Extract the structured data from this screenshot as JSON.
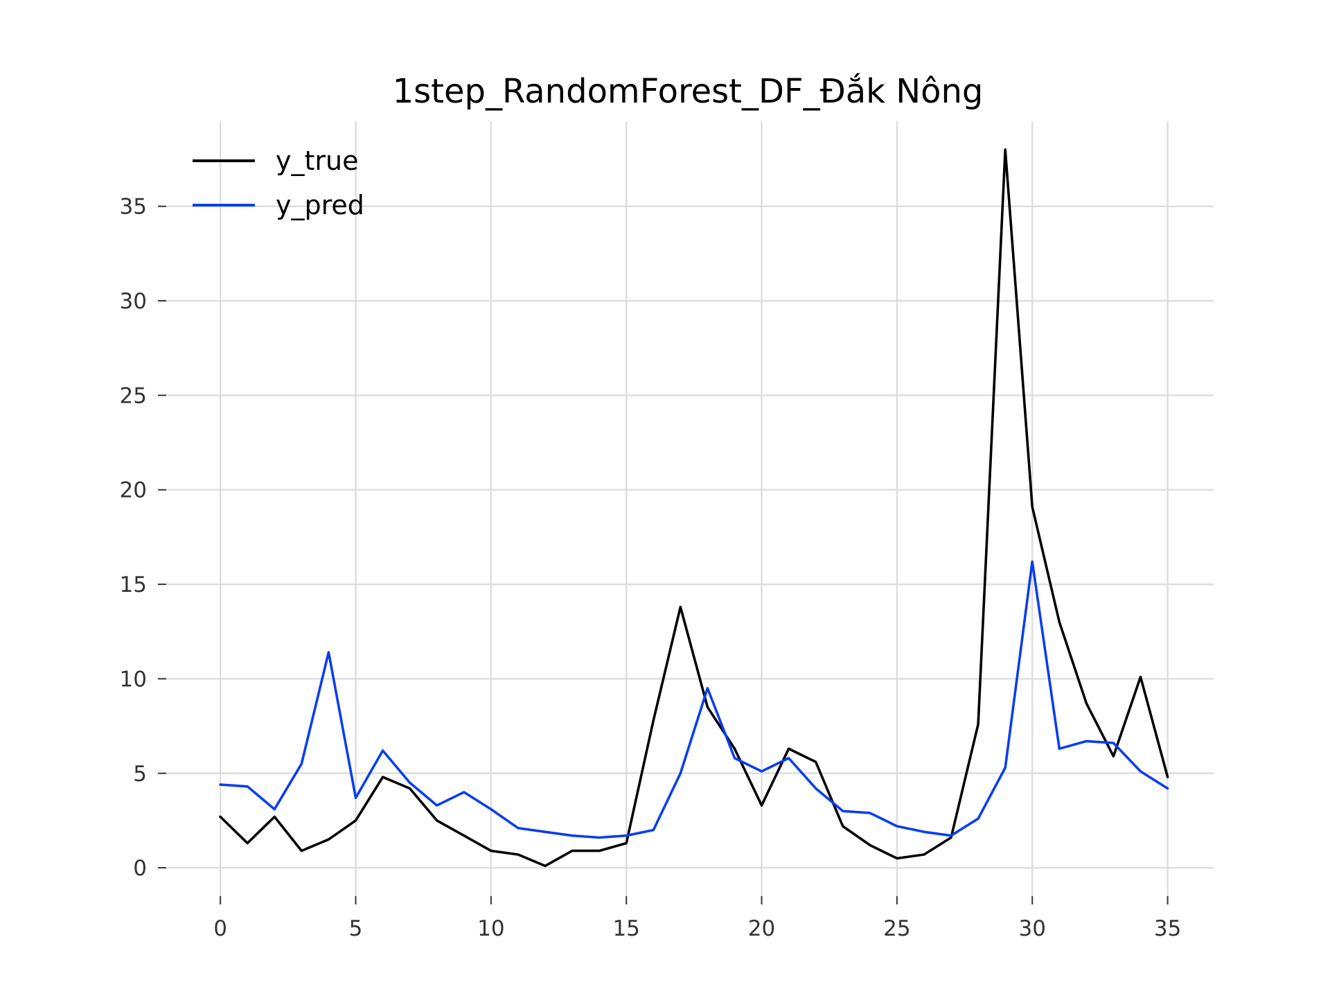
{
  "chart_data": {
    "type": "line",
    "title": "1step_RandomForest_DF_Đắk Nông",
    "xlabel": "",
    "ylabel": "",
    "x": [
      0,
      1,
      2,
      3,
      4,
      5,
      6,
      7,
      8,
      9,
      10,
      11,
      12,
      13,
      14,
      15,
      16,
      17,
      18,
      19,
      20,
      21,
      22,
      23,
      24,
      25,
      26,
      27,
      28,
      29,
      30,
      31,
      32,
      33,
      34,
      35
    ],
    "xlim": [
      -2,
      36.7
    ],
    "ylim": [
      -1.5,
      39.5
    ],
    "xticks": [
      0,
      5,
      10,
      15,
      20,
      25,
      30,
      35
    ],
    "yticks": [
      0,
      5,
      10,
      15,
      20,
      25,
      30,
      35
    ],
    "grid": true,
    "legend_position": "top-left",
    "series": [
      {
        "name": "y_true",
        "color": "#000000",
        "values": [
          2.7,
          1.3,
          2.7,
          0.9,
          1.5,
          2.5,
          4.8,
          4.2,
          2.5,
          1.7,
          0.9,
          0.7,
          0.1,
          0.9,
          0.9,
          1.3,
          7.8,
          13.8,
          8.5,
          6.3,
          3.3,
          6.3,
          5.6,
          2.2,
          1.2,
          0.5,
          0.7,
          1.6,
          7.6,
          38.0,
          19.1,
          13.0,
          8.7,
          5.9,
          10.1,
          4.8
        ]
      },
      {
        "name": "y_pred",
        "color": "#0a3ef0",
        "values": [
          4.4,
          4.3,
          3.1,
          5.5,
          11.4,
          3.7,
          6.2,
          4.5,
          3.3,
          4.0,
          3.1,
          2.1,
          1.9,
          1.7,
          1.6,
          1.7,
          2.0,
          5.0,
          9.5,
          5.8,
          5.1,
          5.8,
          4.2,
          3.0,
          2.9,
          2.2,
          1.9,
          1.7,
          2.6,
          5.3,
          16.2,
          6.3,
          6.7,
          6.6,
          5.1,
          4.2
        ]
      }
    ]
  }
}
